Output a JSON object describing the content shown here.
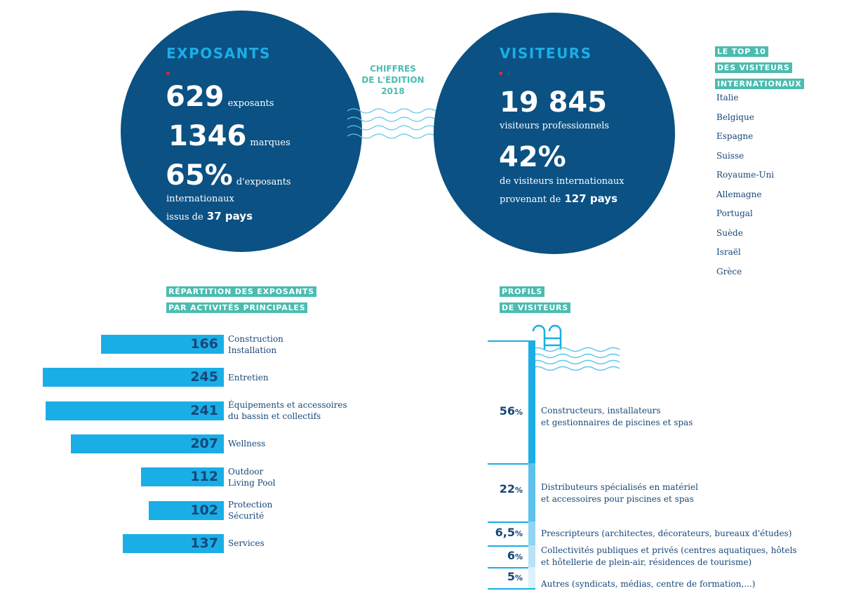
{
  "edition": {
    "line1": "CHIFFRES",
    "line2": "DE L'ÉDITION",
    "line3": "2018"
  },
  "exposants": {
    "title": "EXPOSANTS",
    "count": "629",
    "count_label": "exposants",
    "brands": "1346",
    "brands_label": "marques",
    "intl_pct": "65%",
    "intl_label": "d'exposants",
    "intl_line2": "internationaux",
    "countries_prefix": "issus de",
    "countries": "37 pays"
  },
  "visiteurs": {
    "title": "VISITEURS",
    "count": "19 845",
    "count_label": "visiteurs professionnels",
    "intl_pct": "42%",
    "intl_label": "de visiteurs internationaux",
    "countries_prefix": "provenant de",
    "countries": "127 pays"
  },
  "top10": {
    "title_lines": [
      "LE TOP 10",
      "DES VISITEURS",
      "INTERNATIONAUX"
    ],
    "countries": [
      "Italie",
      "Belgique",
      "Espagne",
      "Suisse",
      "Royaume-Uni",
      "Allemagne",
      "Portugal",
      "Suède",
      "Israël",
      "Grèce"
    ]
  },
  "colors": {
    "navy": "#0b5183",
    "cyan": "#1aaee6",
    "teal": "#4bbcb0",
    "red_dot": "#e5234a"
  },
  "chart_data": [
    {
      "type": "bar",
      "title": "RÉPARTITION DES EXPOSANTS PAR ACTIVITÉS PRINCIPALES",
      "title_lines": [
        "RÉPARTITION DES EXPOSANTS",
        "PAR ACTIVITÉS PRINCIPALES"
      ],
      "orientation": "horizontal",
      "categories": [
        [
          "Construction",
          "Installation"
        ],
        [
          "Entretien"
        ],
        [
          "Équipements et accessoires",
          "du bassin et collectifs"
        ],
        [
          "Wellness"
        ],
        [
          "Outdoor",
          "Living Pool"
        ],
        [
          "Protection",
          "Sécurité"
        ],
        [
          "Services"
        ]
      ],
      "values": [
        166,
        245,
        241,
        207,
        112,
        102,
        137
      ]
    },
    {
      "type": "bar",
      "title": "PROFILS DE VISITEURS",
      "title_lines": [
        "PROFILS",
        "DE VISITEURS"
      ],
      "orientation": "stacked-vertical",
      "unit": "%",
      "labels": [
        "56",
        "22",
        "6,5",
        "6",
        "5"
      ],
      "values": [
        56,
        22,
        6.5,
        6,
        5
      ],
      "categories": [
        [
          "Constructeurs, installateurs",
          "et gestionnaires de piscines et spas"
        ],
        [
          "Distributeurs spécialisés en matériel",
          "et accessoires pour piscines et spas"
        ],
        [
          "Prescripteurs (architectes, décorateurs, bureaux d'études)"
        ],
        [
          "Collectivités publiques et privés (centres aquatiques, hôtels",
          "et hôtellerie de plein-air, résidences de tourisme)"
        ],
        [
          "Autres (syndicats, médias, centre de formation,...)"
        ]
      ]
    }
  ]
}
